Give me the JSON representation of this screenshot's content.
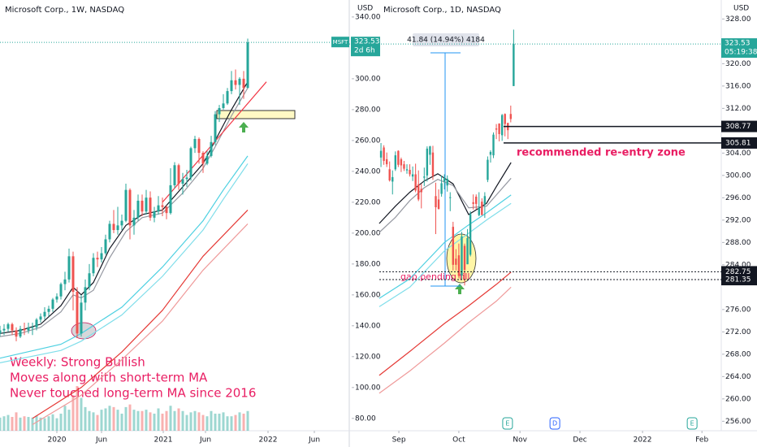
{
  "chart_data": [
    {
      "type": "candlestick",
      "title": "Microsoft Corp., 1W, NASDAQ",
      "currency": "USD",
      "symbol": "MSFT",
      "last_price": 323.53,
      "countdown": "2d 6h",
      "up_color": "#26a69a",
      "down_color": "#ef5350",
      "x": [
        0,
        1,
        2,
        3,
        4,
        5,
        6,
        7,
        8,
        9,
        10,
        11,
        12,
        13,
        14,
        15,
        16,
        17,
        18,
        19,
        20,
        21,
        22,
        23,
        24,
        25,
        26,
        27,
        28,
        29,
        30,
        31,
        32,
        33,
        34,
        35,
        36,
        37,
        38,
        39,
        40,
        41,
        42,
        43,
        44,
        45,
        46,
        47,
        48,
        49,
        50,
        51,
        52,
        53,
        54,
        55,
        56,
        57,
        58,
        59,
        60,
        61
      ],
      "open": [
        135,
        137,
        138,
        141,
        137,
        133,
        138,
        137,
        139,
        139,
        144,
        146,
        149,
        151,
        157,
        159,
        167,
        170,
        185,
        162,
        135,
        155,
        165,
        174,
        184,
        183,
        187,
        196,
        206,
        202,
        205,
        208,
        228,
        205,
        210,
        221,
        214,
        223,
        210,
        214,
        218,
        217,
        213,
        231,
        244,
        232,
        235,
        236,
        255,
        261,
        252,
        245,
        250,
        259,
        277,
        281,
        284,
        292,
        299,
        296,
        300,
        294
      ],
      "high": [
        140,
        141,
        142,
        142,
        139,
        140,
        142,
        142,
        142,
        145,
        148,
        152,
        153,
        158,
        161,
        168,
        175,
        190,
        188,
        165,
        160,
        170,
        180,
        187,
        188,
        191,
        199,
        208,
        215,
        217,
        212,
        232,
        229,
        215,
        225,
        225,
        228,
        227,
        217,
        224,
        223,
        218,
        242,
        246,
        245,
        239,
        241,
        256,
        263,
        262,
        253,
        253,
        263,
        279,
        283,
        290,
        294,
        305,
        306,
        301,
        305,
        326
      ],
      "low": [
        133,
        134,
        136,
        134,
        130,
        132,
        134,
        135,
        134,
        137,
        142,
        144,
        146,
        149,
        155,
        157,
        163,
        168,
        150,
        132,
        133,
        150,
        163,
        172,
        178,
        181,
        186,
        194,
        200,
        199,
        202,
        207,
        196,
        199,
        208,
        211,
        212,
        208,
        207,
        212,
        211,
        209,
        212,
        229,
        228,
        225,
        230,
        234,
        252,
        245,
        239,
        244,
        249,
        257,
        272,
        280,
        283,
        290,
        293,
        283,
        287,
        294
      ],
      "close": [
        137,
        138,
        141,
        137,
        133,
        138,
        137,
        139,
        139,
        144,
        146,
        149,
        151,
        157,
        159,
        167,
        170,
        185,
        162,
        135,
        155,
        165,
        174,
        184,
        183,
        187,
        196,
        206,
        202,
        205,
        208,
        228,
        205,
        210,
        221,
        214,
        223,
        210,
        214,
        218,
        217,
        213,
        231,
        244,
        232,
        235,
        236,
        255,
        261,
        252,
        245,
        250,
        259,
        277,
        281,
        284,
        292,
        299,
        296,
        300,
        294,
        323.53
      ],
      "volume": [
        100,
        110,
        120,
        105,
        140,
        100,
        110,
        105,
        100,
        115,
        100,
        95,
        110,
        125,
        95,
        130,
        190,
        160,
        270,
        340,
        250,
        180,
        150,
        140,
        120,
        160,
        170,
        190,
        180,
        160,
        130,
        180,
        200,
        160,
        150,
        150,
        160,
        140,
        130,
        170,
        130,
        150,
        190,
        150,
        170,
        150,
        120,
        140,
        150,
        140,
        120,
        110,
        150,
        130,
        130,
        140,
        110,
        110,
        120,
        140,
        130,
        150
      ],
      "xlim": [
        0,
        86
      ],
      "xticks": [
        {
          "value": 14,
          "label": "2020"
        },
        {
          "value": 25,
          "label": "Jun"
        },
        {
          "value": 40.2,
          "label": "2021"
        },
        {
          "value": 50.6,
          "label": "Jun"
        },
        {
          "value": 66,
          "label": "2022"
        },
        {
          "value": 77.4,
          "label": "Jun"
        }
      ],
      "ylim": [
        72,
        351
      ],
      "yticks": [
        {
          "value": 340,
          "label": "340.00"
        },
        {
          "value": 320,
          "label": "320.00"
        },
        {
          "value": 300,
          "label": "300.00"
        },
        {
          "value": 280,
          "label": "280.00"
        },
        {
          "value": 260,
          "label": "260.00"
        },
        {
          "value": 240,
          "label": "240.00"
        },
        {
          "value": 220,
          "label": "220.00"
        },
        {
          "value": 200,
          "label": "200.00"
        },
        {
          "value": 180,
          "label": "180.00"
        },
        {
          "value": 160,
          "label": "160.00"
        },
        {
          "value": 140,
          "label": "140.00"
        },
        {
          "value": 120,
          "label": "120.00"
        },
        {
          "value": 100,
          "label": "100.00"
        },
        {
          "value": 80,
          "label": "80.00"
        }
      ],
      "moving_averages": [
        {
          "color": "#131722",
          "x": [
            0,
            5,
            10,
            15,
            18,
            20,
            23,
            27,
            31,
            35,
            40,
            45,
            50,
            53,
            57,
            61
          ],
          "values": [
            135,
            137,
            141,
            153,
            165,
            160,
            168,
            190,
            205,
            212,
            215,
            230,
            245,
            260,
            280,
            298
          ]
        },
        {
          "color": "#9598a1",
          "x": [
            0,
            5,
            10,
            15,
            18,
            20,
            23,
            27,
            31,
            35,
            40,
            45,
            50,
            53,
            57,
            61
          ],
          "values": [
            133,
            135,
            139,
            149,
            160,
            158,
            163,
            184,
            201,
            210,
            213,
            226,
            242,
            256,
            276,
            294
          ]
        },
        {
          "color": "#4dd0e1",
          "x": [
            0,
            15,
            20,
            30,
            40,
            50,
            55,
            61
          ],
          "values": [
            119,
            128,
            135,
            152,
            178,
            208,
            228,
            250
          ]
        },
        {
          "color": "#80deea",
          "x": [
            0,
            15,
            20,
            30,
            40,
            50,
            55,
            61
          ],
          "values": [
            116,
            124,
            130,
            147,
            172,
            202,
            222,
            245
          ]
        },
        {
          "color": "#e53935",
          "x": [
            8,
            20,
            30,
            40,
            50,
            61
          ],
          "values": [
            80,
            100,
            123,
            150,
            185,
            215
          ]
        },
        {
          "color": "#ef9a9a",
          "x": [
            8,
            20,
            30,
            40,
            50,
            61
          ],
          "values": [
            76,
            95,
            118,
            143,
            176,
            206
          ]
        }
      ],
      "trendlines": [
        {
          "color": "#f23645",
          "x": [
            40,
            65.6
          ],
          "values": [
            220,
            298
          ]
        }
      ],
      "annotations": [
        "Weekly: Strong Bullish",
        "Moves along with short-term MA",
        "Never touched long-term MA since 2016"
      ]
    },
    {
      "type": "candlestick",
      "title": "Microsoft Corp., 1D, NASDAQ",
      "currency": "USD",
      "last_price": 323.53,
      "countdown": "05:19:38",
      "up_color": "#26a69a",
      "down_color": "#ef5350",
      "x": [
        0,
        1,
        2,
        3,
        4,
        5,
        6,
        7,
        8,
        9,
        10,
        11,
        12,
        13,
        14,
        15,
        16,
        17,
        18,
        19,
        20,
        21,
        22,
        23,
        24,
        25,
        26,
        27,
        28,
        29,
        30,
        31,
        32,
        33,
        34,
        35,
        36,
        37,
        38,
        39,
        40,
        41,
        42,
        43,
        44,
        45,
        46
      ],
      "open": [
        303.2,
        305.0,
        302.9,
        301.1,
        298.9,
        301.1,
        304.4,
        302.9,
        302.0,
        300.9,
        301.0,
        299.8,
        300.2,
        298.4,
        297.6,
        299.6,
        300.0,
        303.7,
        304.1,
        296.3,
        295.7,
        296.7,
        298.9,
        298.2,
        296.1,
        290.8,
        285.1,
        285.7,
        282.1,
        287.4,
        284.1,
        285.8,
        295.2,
        296.2,
        292.9,
        295.3,
        294.9,
        299.2,
        303.7,
        303.6,
        308.4,
        309.3,
        307.2,
        311.0,
        309.4,
        311.0,
        316.0
      ],
      "high": [
        305.8,
        305.4,
        304.1,
        302.5,
        300.9,
        304.3,
        304.5,
        303.2,
        302.6,
        302.0,
        302.0,
        301.6,
        302.1,
        300.9,
        298.5,
        301.4,
        305.2,
        305.3,
        305.3,
        298.7,
        297.5,
        300.0,
        300.2,
        300.0,
        297.0,
        291.7,
        286.8,
        287.8,
        289.9,
        287.8,
        290.4,
        293.6,
        296.6,
        296.6,
        297.0,
        295.9,
        297.0,
        303.4,
        304.5,
        307.7,
        309.2,
        309.3,
        311.0,
        311.1,
        309.4,
        312.5,
        326.1
      ],
      "low": [
        301.5,
        301.9,
        301.5,
        298.9,
        296.6,
        300.8,
        301.5,
        300.6,
        300.8,
        300.3,
        299.8,
        299.0,
        297.0,
        295.4,
        294.1,
        298.1,
        298.9,
        301.9,
        299.2,
        289.5,
        293.9,
        296.2,
        297.5,
        297.1,
        293.6,
        283.0,
        283.0,
        281.6,
        281.3,
        280.3,
        284.1,
        285.5,
        293.9,
        293.9,
        292.7,
        292.9,
        292.4,
        298.8,
        302.3,
        303.1,
        306.5,
        306.1,
        306.2,
        307.0,
        306.5,
        309.5,
        316.0
      ],
      "close": [
        304.4,
        302.6,
        302.0,
        299.1,
        299.7,
        303.6,
        301.9,
        301.8,
        301.2,
        301.1,
        300.2,
        300.2,
        297.3,
        295.7,
        297.0,
        299.8,
        304.8,
        305.2,
        299.9,
        294.3,
        294.0,
        298.6,
        299.6,
        299.4,
        296.1,
        284.0,
        284.0,
        282.0,
        289.1,
        283.1,
        288.8,
        293.1,
        294.9,
        294.9,
        294.2,
        292.9,
        296.3,
        302.8,
        304.2,
        307.3,
        308.2,
        307.4,
        310.8,
        309.2,
        308.1,
        310.1,
        323.53
      ],
      "xlim": [
        -11,
        118
      ],
      "xticks": [
        {
          "value": 6.2,
          "label": "Sep"
        },
        {
          "value": 27,
          "label": "Oct"
        },
        {
          "value": 48.2,
          "label": "Nov"
        },
        {
          "value": 69,
          "label": "Dec"
        },
        {
          "value": 90.7,
          "label": "2022"
        },
        {
          "value": 111.3,
          "label": "Feb"
        }
      ],
      "ylim": [
        254.3,
        331.4
      ],
      "yticks": [
        {
          "value": 328,
          "label": "328.00"
        },
        {
          "value": 320,
          "label": "320.00"
        },
        {
          "value": 316,
          "label": "316.00"
        },
        {
          "value": 312,
          "label": "312.00"
        },
        {
          "value": 304,
          "label": "304.00"
        },
        {
          "value": 300,
          "label": "300.00"
        },
        {
          "value": 296,
          "label": "296.00"
        },
        {
          "value": 292,
          "label": "292.00"
        },
        {
          "value": 288,
          "label": "288.00"
        },
        {
          "value": 284,
          "label": "284.00"
        },
        {
          "value": 276,
          "label": "276.00"
        },
        {
          "value": 272,
          "label": "272.00"
        },
        {
          "value": 268,
          "label": "268.00"
        },
        {
          "value": 264,
          "label": "264.00"
        },
        {
          "value": 260,
          "label": "260.00"
        },
        {
          "value": 256,
          "label": "256.00"
        }
      ],
      "moving_averages": [
        {
          "color": "#131722",
          "x": [
            -0.6,
            5,
            10,
            15,
            19.7,
            25,
            30.4,
            36.6,
            40,
            45.1
          ],
          "values": [
            291.4,
            294.5,
            297,
            299,
            300.3,
            298.5,
            293,
            295,
            298,
            302.3
          ]
        },
        {
          "color": "#9598a1",
          "x": [
            -0.6,
            5,
            10,
            15,
            19.7,
            25,
            30.4,
            36.6,
            40,
            45.1
          ],
          "values": [
            289.8,
            292.5,
            295.5,
            297.8,
            299.3,
            298.2,
            294.2,
            294.5,
            296.5,
            299.5
          ]
        },
        {
          "color": "#4dd0e1",
          "x": [
            -0.6,
            10,
            22,
            30,
            36.6,
            45.1
          ],
          "values": [
            278,
            281.5,
            288,
            291,
            293.3,
            296.5
          ]
        },
        {
          "color": "#80deea",
          "x": [
            -0.6,
            10,
            22,
            30,
            36.6,
            45.1
          ],
          "values": [
            276.5,
            280,
            286.5,
            289.5,
            292,
            295
          ]
        },
        {
          "color": "#e53935",
          "x": [
            -0.6,
            10,
            22,
            30,
            40,
            45.1
          ],
          "values": [
            264.2,
            268.5,
            273.5,
            276.5,
            280.5,
            282.7
          ]
        },
        {
          "color": "#ef9a9a",
          "x": [
            -0.6,
            10,
            22,
            30,
            40,
            45.1
          ],
          "values": [
            261,
            265,
            270,
            273.5,
            277.5,
            280
          ]
        }
      ],
      "levels": [
        {
          "value": 308.77,
          "style": "solid"
        },
        {
          "value": 305.81,
          "style": "solid"
        },
        {
          "value": 282.75,
          "style": "dotted"
        },
        {
          "value": 281.35,
          "style": "dotted"
        }
      ],
      "measure": "41.84 (14.94%) 4184",
      "annotations": [
        "recommended re-entry zone",
        "gap pending fill"
      ],
      "events": [
        {
          "x": 43.9,
          "label": "E"
        },
        {
          "x": 60.3,
          "label": "D"
        },
        {
          "x": 107.9,
          "label": "E"
        }
      ]
    }
  ]
}
